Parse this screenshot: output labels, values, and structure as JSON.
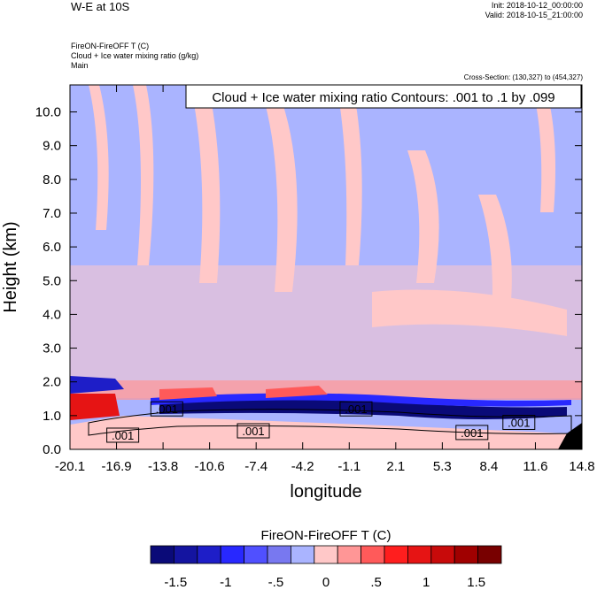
{
  "header": {
    "main_title": "W-E at 10S",
    "init": "Init: 2018-10-12_00:00:00",
    "valid": "Valid: 2018-10-15_21:00:00",
    "line1": "FireON-FireOFF T   (C)",
    "line2": "Cloud + Ice water mixing ratio   (g/kg)",
    "line3": "Main",
    "cross_section": "Cross-Section: (130,327) to (454,327)",
    "contour_info": "Cloud + Ice water mixing ratio Contours: .001 to .1 by .099"
  },
  "chart_data": {
    "type": "heatmap",
    "xlabel": "longitude",
    "ylabel": "Height (km)",
    "x_ticks": [
      "-20.1",
      "-16.9",
      "-13.8",
      "-10.6",
      "-7.4",
      "-4.2",
      "-1.1",
      "2.1",
      "5.3",
      "8.4",
      "11.6",
      "14.8"
    ],
    "y_ticks": [
      "0.0",
      "1.0",
      "2.0",
      "3.0",
      "4.0",
      "5.0",
      "6.0",
      "7.0",
      "8.0",
      "9.0",
      "10.0"
    ],
    "xlim": [
      -20.1,
      14.8
    ],
    "ylim": [
      0,
      10.8
    ],
    "contour_labels": [
      {
        "text": ".001",
        "x": -13.5,
        "y": 1.2
      },
      {
        "text": ".001",
        "x": -16.5,
        "y": 0.42
      },
      {
        "text": ".001",
        "x": -7.6,
        "y": 0.55
      },
      {
        "text": ".001",
        "x": -0.6,
        "y": 1.2
      },
      {
        "text": ".001",
        "x": 7.3,
        "y": 0.5
      },
      {
        "text": ".001",
        "x": 10.5,
        "y": 0.8
      }
    ],
    "colorbar": {
      "title": "FireON-FireOFF T  (C)",
      "tick_labels": [
        "-1.5",
        "-1",
        "-.5",
        "0",
        ".5",
        "1",
        "1.5"
      ],
      "tick_values": [
        -1.5,
        -1,
        -0.5,
        0,
        0.5,
        1,
        1.5
      ],
      "colors": [
        "#0a0a78",
        "#1414a0",
        "#1e1ec8",
        "#2828ff",
        "#5050ff",
        "#7878f0",
        "#aab4ff",
        "#ffc8c8",
        "#ff9696",
        "#ff5a5a",
        "#ff1e1e",
        "#e61414",
        "#c80a0a",
        "#a00000",
        "#780000"
      ]
    }
  }
}
